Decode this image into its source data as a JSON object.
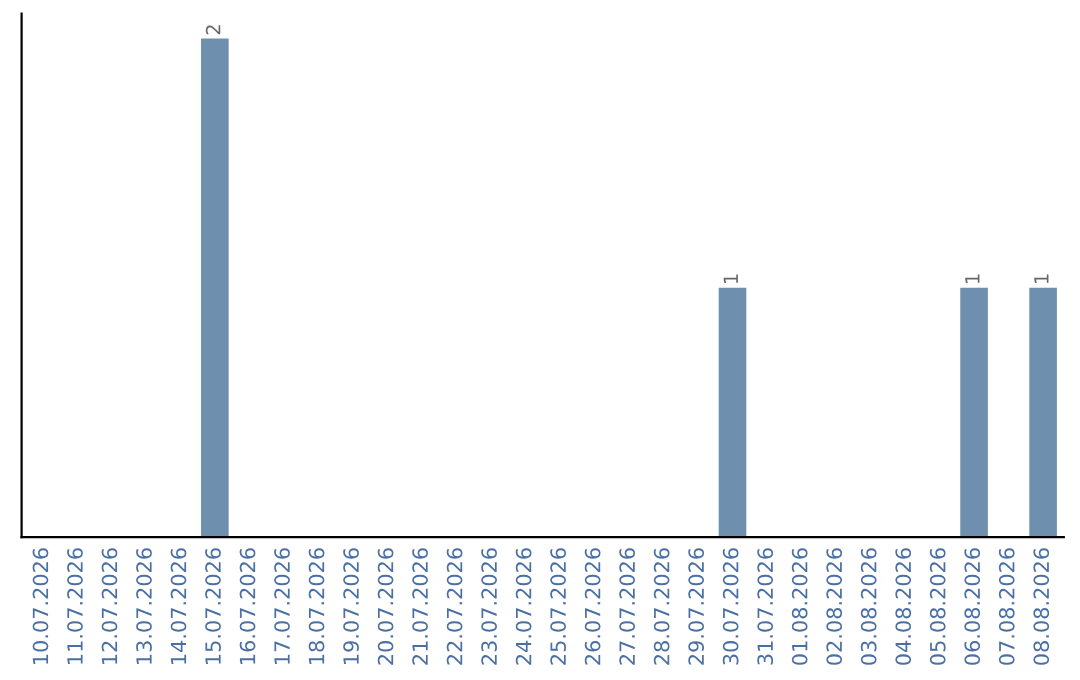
{
  "chart_data": {
    "type": "bar",
    "categories": [
      "10.07.2026",
      "11.07.2026",
      "12.07.2026",
      "13.07.2026",
      "14.07.2026",
      "15.07.2026",
      "16.07.2026",
      "17.07.2026",
      "18.07.2026",
      "19.07.2026",
      "20.07.2026",
      "21.07.2026",
      "22.07.2026",
      "23.07.2026",
      "24.07.2026",
      "25.07.2026",
      "26.07.2026",
      "27.07.2026",
      "28.07.2026",
      "29.07.2026",
      "30.07.2026",
      "31.07.2026",
      "01.08.2026",
      "02.08.2026",
      "03.08.2026",
      "04.08.2026",
      "05.08.2026",
      "06.08.2026",
      "07.08.2026",
      "08.08.2026"
    ],
    "values": [
      0,
      0,
      0,
      0,
      0,
      2,
      0,
      0,
      0,
      0,
      0,
      0,
      0,
      0,
      0,
      0,
      0,
      0,
      0,
      0,
      1,
      0,
      0,
      0,
      0,
      0,
      0,
      1,
      0,
      1
    ],
    "value_labels": [
      null,
      null,
      null,
      null,
      null,
      "2",
      null,
      null,
      null,
      null,
      null,
      null,
      null,
      null,
      null,
      null,
      null,
      null,
      null,
      null,
      "1",
      null,
      null,
      null,
      null,
      null,
      null,
      "1",
      null,
      "1"
    ],
    "color": "#6e8fad",
    "tick_labels": "x",
    "grid": false,
    "legend": false
  }
}
